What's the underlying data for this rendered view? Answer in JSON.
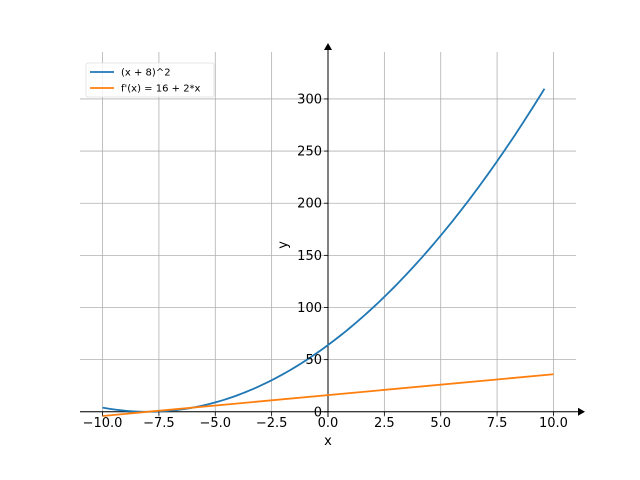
{
  "chart_data": {
    "type": "line",
    "xlabel": "x",
    "ylabel": "y",
    "xlim": [
      -11,
      11
    ],
    "ylim": [
      -5,
      345
    ],
    "grid": true,
    "legend_location": "top-left",
    "x_ticks": [
      -10,
      -7.5,
      -5,
      -2.5,
      0,
      2.5,
      5,
      7.5,
      10
    ],
    "x_tick_labels": [
      "−10.0",
      "−7.5",
      "−5.0",
      "−2.5",
      "0.0",
      "2.5",
      "5.0",
      "7.5",
      "10.0"
    ],
    "y_ticks": [
      0,
      50,
      100,
      150,
      200,
      250,
      300
    ],
    "y_tick_labels": [
      "0",
      "50",
      "100",
      "150",
      "200",
      "250",
      "300"
    ],
    "series": [
      {
        "name": "(x + 8)^2",
        "color": "#1f77b4",
        "x": [
          -10,
          -9,
          -8,
          -7,
          -6,
          -5,
          -4,
          -3,
          -2,
          -1,
          0,
          1,
          2,
          3,
          4,
          5,
          6,
          7,
          8,
          9,
          9.6
        ],
        "y": [
          4,
          1,
          0,
          1,
          4,
          9,
          16,
          25,
          36,
          49,
          64,
          81,
          100,
          121,
          144,
          169,
          196,
          225,
          256,
          289,
          309.76
        ]
      },
      {
        "name": "f'(x) = 16 + 2*x",
        "color": "#ff7f0e",
        "x": [
          -10,
          10
        ],
        "y": [
          -4,
          36
        ]
      }
    ]
  }
}
